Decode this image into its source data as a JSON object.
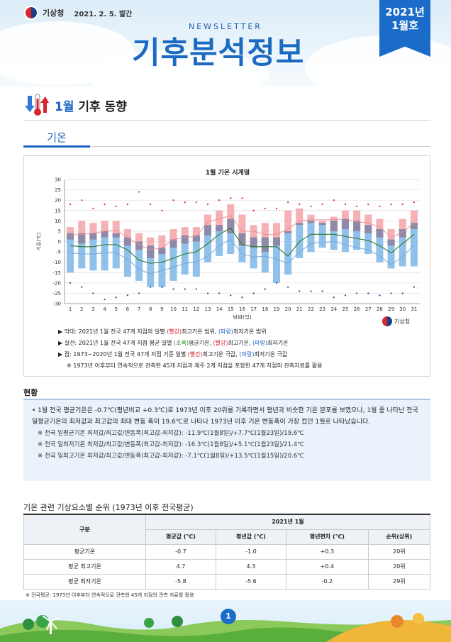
{
  "header": {
    "org": "기상청",
    "date": "2021. 2. 5. 발간",
    "newsletter": "NEWSLETTER",
    "title": "기후분석정보",
    "issue_line1": "2021년",
    "issue_line2": "1월호"
  },
  "section": {
    "month": "1월",
    "title": "기후 동향"
  },
  "tab": "기온",
  "chart_source": "기상청",
  "chart_data": {
    "type": "bar",
    "title": "1월 기온 시계열",
    "xlabel": "날짜(일)",
    "ylabel": "기온(℃)",
    "ylim": [
      -30,
      30
    ],
    "yticks": [
      30,
      25,
      20,
      15,
      10,
      5,
      0,
      -5,
      -10,
      -15,
      -20,
      -25,
      -30
    ],
    "x": [
      1,
      2,
      3,
      4,
      5,
      6,
      7,
      8,
      9,
      10,
      11,
      12,
      13,
      14,
      15,
      16,
      17,
      18,
      19,
      20,
      21,
      22,
      23,
      24,
      25,
      26,
      27,
      28,
      29,
      30,
      31
    ],
    "series": [
      {
        "name": "최고기온 범위",
        "range_low": [
          1,
          -1,
          1,
          2,
          2,
          -2,
          -4,
          -8,
          -6,
          -3,
          -1,
          0,
          3,
          5,
          4,
          -2,
          -3,
          -5,
          -2,
          4,
          8,
          9,
          8,
          5,
          6,
          5,
          4,
          2,
          -2,
          2,
          6
        ],
        "range_high": [
          7,
          10,
          9,
          10,
          10,
          6,
          4,
          2,
          3,
          6,
          7,
          7,
          13,
          15,
          18,
          13,
          8,
          9,
          9,
          15,
          16,
          13,
          10,
          12,
          15,
          15,
          13,
          11,
          6,
          11,
          15
        ]
      },
      {
        "name": "최저기온 범위",
        "range_low": [
          -15,
          -13,
          -14,
          -14,
          -13,
          -17,
          -19,
          -22,
          -22,
          -19,
          -16,
          -17,
          -10,
          -7,
          -6,
          -10,
          -13,
          -15,
          -20,
          -16,
          -8,
          -5,
          -3,
          -4,
          -5,
          -4,
          -6,
          -10,
          -13,
          -12,
          -12
        ],
        "range_high": [
          4,
          4,
          4,
          5,
          4,
          2,
          0,
          -2,
          -3,
          1,
          3,
          3,
          8,
          8,
          11,
          4,
          2,
          2,
          2,
          5,
          9,
          10,
          9,
          10,
          11,
          10,
          8,
          6,
          1,
          6,
          9
        ]
      },
      {
        "name": "평균기온",
        "values": [
          -2,
          -2.5,
          -2.5,
          -1.5,
          -1.5,
          -4,
          -9,
          -10.5,
          -10,
          -8,
          -6,
          -5,
          -1,
          3.5,
          6.5,
          -1.5,
          -2.5,
          -2.5,
          -2.5,
          -7,
          0,
          3.5,
          3.5,
          3.5,
          2.5,
          1.5,
          0.5,
          -2,
          -5.5,
          -1,
          3.5
        ]
      },
      {
        "name": "평균 최고기온",
        "values": [
          3,
          3.5,
          4,
          5,
          5.5,
          2,
          -1.5,
          -4,
          -3,
          1,
          2,
          2.5,
          9.5,
          11,
          12.5,
          5,
          5,
          3.5,
          3.5,
          6,
          10,
          10.5,
          10.5,
          10.5,
          11,
          9.5,
          9,
          7,
          2,
          4.5,
          9
        ]
      },
      {
        "name": "평균 최저기온",
        "values": [
          -5.5,
          -6,
          -6,
          -5.5,
          -5.5,
          -8.5,
          -13.5,
          -15.5,
          -14,
          -12.5,
          -10.5,
          -10,
          -7,
          -2,
          1,
          -6,
          -7.5,
          -7,
          -8.5,
          -10.5,
          -5,
          -1,
          -0.5,
          0,
          -1.5,
          -3,
          -4,
          -7,
          -11,
          -7.5,
          -1.5
        ]
      },
      {
        "name": "극값 최고",
        "values": [
          18,
          20,
          16,
          18,
          17,
          18,
          24,
          18,
          15,
          20,
          19,
          19,
          18,
          20,
          21,
          21,
          15,
          16,
          16,
          19,
          18,
          17,
          18,
          20,
          18,
          17,
          18,
          17,
          18,
          18,
          19
        ]
      },
      {
        "name": "극값 최저",
        "values": [
          -20,
          -22,
          -25,
          -28,
          -27,
          -26,
          -25,
          -22,
          -22,
          -23,
          -23,
          -23,
          -25,
          -25,
          -26,
          -27,
          -25,
          -23,
          -20,
          -22,
          -24,
          -24,
          -24,
          -27,
          -26,
          -25,
          -25,
          -26,
          -25,
          -25,
          -22
        ]
      }
    ]
  },
  "notes": [
    [
      "▶ 막대: 2021년 1월 전국 47개 지점의 일별 ",
      "(빨강)",
      "최고기온 범위, ",
      "(파랑)",
      "최저기온 범위"
    ],
    [
      "▶ 실선: 2021년 1월 전국 47개 지점 평균 일별 ",
      "(초록)",
      "평균기온, ",
      "(빨강)",
      "최고기온, ",
      "(파랑)",
      "최저기온"
    ],
    [
      "▶ 점: 1973~2020년 1월 전국 47개 지점 기준 일별 ",
      "(빨강)",
      "최고기온 극값, ",
      "(파랑)",
      "최저기온 극값"
    ],
    [
      "※ 1973년 이후부터 연속적으로 관측한 45개 지점과 제주 2개 지점을 포함한 47개 지점의 관측자료를 활용"
    ]
  ],
  "status": {
    "heading": "현황",
    "main": "• 1월 전국 평균기온은 -0.7℃(평년비교 +0.3℃)로 1973년 이후 20위를 기록하면서 평년과 비슷한 기온 분포를 보였으나, 1월 중 나타난 전국 일평균기온의 최저값과 최고값의 최대 변동 폭이 19.6℃로 나타나 1973년 이후 기온 변동폭이 가장 컸던 1월로 나타났습니다.",
    "items": [
      "※ 전국 일평균기온 최저값/최고값/변동폭(최고값-최저값): -11.9℃(1월8일)/+7.7℃(1월23일)/19.6℃",
      "※ 전국 일최저기온 최저값/최고값/변동폭(최고값-최저값): -16.3℃(1월8일)/+5.1℃(1월23일)/21.4℃",
      "※ 전국 일최고기온 최저값/최고값/변동폭(최고값-최저값): -7.1℃(1월8일)/+13.5℃(1월15일)/20.6℃"
    ]
  },
  "table": {
    "heading": "기온 관련 기상요소별 순위 (1973년 이후 전국평균)",
    "group_header": "2021년 1월",
    "col0": "구분",
    "columns": [
      "평균값 (℃)",
      "평년값 (℃)",
      "평년편차 (℃)",
      "순위(상위)"
    ],
    "rows": [
      [
        "평균기온",
        "-0.7",
        "-1.0",
        "+0.3",
        "20위"
      ],
      [
        "평균 최고기온",
        "4.7",
        "4.3",
        "+0.4",
        "20위"
      ],
      [
        "평균 최저기온",
        "-5.8",
        "-5.6",
        "-0.2",
        "29위"
      ]
    ],
    "footnote": "※ 전국평균: 1973년 이후부터 연속적으로 관측한 45개 지점의 관측 자료를 활용"
  },
  "page_number": "1"
}
